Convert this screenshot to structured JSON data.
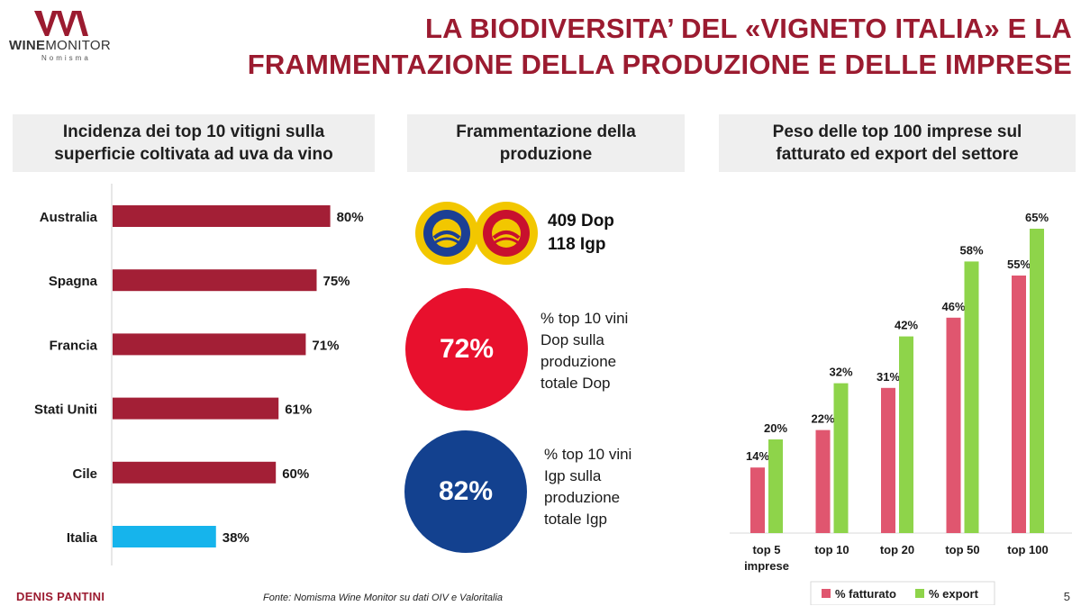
{
  "brand": {
    "logo_bold": "WINE",
    "logo_light": "MONITOR",
    "logo_sub": "Nomisma"
  },
  "title": {
    "line1": "LA BIODIVERSITA’ DEL «VIGNETO ITALIA» E LA",
    "line2": "FRAMMENTAZIONE DELLA PRODUZIONE E DELLE IMPRESE"
  },
  "panels": {
    "left_title": "Incidenza dei top 10 vitigni sulla superficie coltivata ad uva da vino",
    "middle_title": "Frammentazione della produzione",
    "right_title": "Peso delle top 100 imprese sul fatturato ed export del settore"
  },
  "production": {
    "dop_count": "409 Dop",
    "igp_count": "118 Igp",
    "dop_share": "72%",
    "dop_share_label": "% top 10 vini Dop sulla produzione totale Dop",
    "igp_share": "82%",
    "igp_share_label": "% top 10 vini Igp sulla produzione totale Igp"
  },
  "chart_data": [
    {
      "type": "bar",
      "orientation": "horizontal",
      "categories": [
        "Australia",
        "Spagna",
        "Francia",
        "Stati Uniti",
        "Cile",
        "Italia"
      ],
      "values": [
        80,
        75,
        71,
        61,
        60,
        38
      ],
      "value_labels": [
        "80%",
        "75%",
        "71%",
        "61%",
        "60%",
        "38%"
      ],
      "colors": [
        "#a31f36",
        "#a31f36",
        "#a31f36",
        "#a31f36",
        "#a31f36",
        "#16b4ec"
      ],
      "xlim": [
        0,
        100
      ],
      "grid": false
    },
    {
      "type": "bar",
      "categories": [
        "top 5 imprese",
        "top 10",
        "top 20",
        "top 50",
        "top 100"
      ],
      "series": [
        {
          "name": "% fatturato",
          "color": "#e0566f",
          "values": [
            14,
            22,
            31,
            46,
            55
          ],
          "labels": [
            "14%",
            "22%",
            "31%",
            "46%",
            "55%"
          ]
        },
        {
          "name": "% export",
          "color": "#8ed44a",
          "values": [
            20,
            32,
            42,
            58,
            65
          ],
          "labels": [
            "20%",
            "32%",
            "42%",
            "58%",
            "65%"
          ]
        }
      ],
      "ylim": [
        0,
        75
      ],
      "legend": "bottom",
      "grid": false
    }
  ],
  "footer": {
    "author": "DENIS PANTINI",
    "source": "Fonte: Nomisma Wine Monitor su dati OIV e Valoritalia",
    "page": "5"
  },
  "colors": {
    "brand": "#9b1b30",
    "dop_circle": "#e8102d",
    "igp_circle": "#13418f"
  }
}
